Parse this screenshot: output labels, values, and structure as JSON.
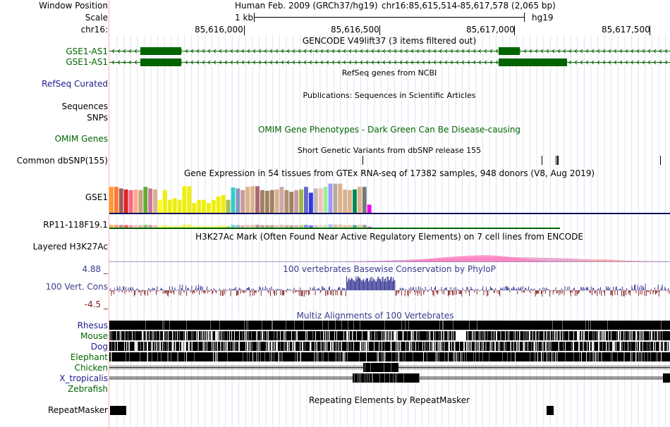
{
  "header": {
    "window_position_label": "Window Position",
    "scale_label": "Scale",
    "chrom_label": "chr16:",
    "assembly": "Human Feb. 2009 (GRCh37/hg19)",
    "coords": "chr16:85,615,514-85,617,578 (2,065 bp)",
    "scale_text": "1 kb",
    "db": "hg19",
    "ruler_ticks": [
      "85,616,000",
      "85,616,500",
      "85,617,000",
      "85,617,500"
    ]
  },
  "tracks": {
    "gencode": {
      "title": "GENCODE V49lift37 (3 items filtered out)",
      "items": [
        "GSE1-AS1",
        "GSE1-AS1"
      ],
      "color": "#006400"
    },
    "refseq": {
      "title": "RefSeq genes from NCBI",
      "label": "RefSeq Curated"
    },
    "publications": {
      "title": "Publications: Sequences in Scientific Articles",
      "labels": [
        "Sequences",
        "SNPs"
      ]
    },
    "omim": {
      "title": "OMIM Gene Phenotypes - Dark Green Can Be Disease-causing",
      "label": "OMIM Genes"
    },
    "dbsnp": {
      "title": "Short Genetic Variants from dbSNP release 155",
      "label": "Common dbSNP(155)"
    },
    "gtex": {
      "title": "Gene Expression in 54 tissues from GTEx RNA-seq of 17382 samples, 948 donors (V8, Aug 2019)",
      "genes": [
        "GSE1",
        "RP11-118F19.1"
      ],
      "gse1_levels": [
        0.8,
        0.8,
        0.75,
        0.72,
        0.7,
        0.72,
        0.7,
        0.8,
        0.75,
        0.72,
        0.4,
        0.7,
        0.4,
        0.45,
        0.4,
        0.82,
        0.82,
        0.3,
        0.4,
        0.4,
        0.3,
        0.4,
        0.5,
        0.55,
        0.4,
        0.78,
        0.75,
        0.7,
        0.8,
        0.82,
        0.82,
        0.7,
        0.68,
        0.7,
        0.72,
        0.8,
        0.7,
        0.65,
        0.7,
        0.72,
        0.8,
        0.62,
        0.75,
        0.75,
        0.8,
        0.9,
        0.9,
        0.9,
        0.72,
        0.7,
        0.72,
        0.8,
        0.8,
        0.25
      ],
      "gse1_colors": [
        "#ff9933",
        "#ff7733",
        "#a05a5a",
        "#dd2222",
        "#ff6688",
        "#ffaa88",
        "#c8a080",
        "#66aa33",
        "#cc7799",
        "#d9b38c",
        "#ffff22",
        "#eeee11",
        "#eeee11",
        "#eeee11",
        "#eeee11",
        "#eeee11",
        "#eeee11",
        "#eeee11",
        "#eeee11",
        "#eeee11",
        "#eeee11",
        "#eeee11",
        "#eeee11",
        "#eeee11",
        "#aabb55",
        "#33cccc",
        "#8899bb",
        "#cc9999",
        "#d9b38c",
        "#d9b38c",
        "#aa6677",
        "#a08060",
        "#a08060",
        "#a08060",
        "#d9b38c",
        "#ccaaaa",
        "#b09070",
        "#a08060",
        "#cc99aa",
        "#99bb44",
        "#6666cc",
        "#3333ee",
        "#bbbbbb",
        "#ffbbbb",
        "#99ee99",
        "#9999ff",
        "#bbaa99",
        "#d9b38c",
        "#d9b38c",
        "#d9b38c",
        "#008855",
        "#d9b38c",
        "#777777",
        "#ee00ee"
      ]
    },
    "h3k27ac": {
      "title": "H3K27Ac Mark (Often Found Near Active Regulatory Elements) on 7 cell lines from ENCODE",
      "label": "Layered H3K27Ac"
    },
    "phylop": {
      "title": "100 vertebrates Basewise Conservation by PhyloP",
      "label": "100 Vert. Cons",
      "max_label": "4.88 _",
      "min_label": "-4.5 _",
      "range": [
        -4.5,
        4.88
      ]
    },
    "multiz": {
      "title": "Multiz Alignments of 100 Vertebrates",
      "species": [
        "Rhesus",
        "Mouse",
        "Dog",
        "Elephant",
        "Chicken",
        "X_tropicalis",
        "Zebrafish"
      ]
    },
    "repeatmasker": {
      "title": "Repeating Elements by RepeatMasker",
      "label": "RepeatMasker"
    }
  }
}
